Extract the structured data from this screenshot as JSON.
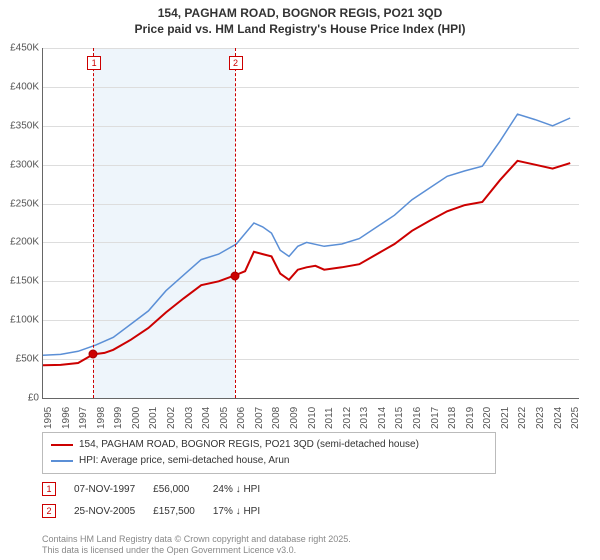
{
  "title_line1": "154, PAGHAM ROAD, BOGNOR REGIS, PO21 3QD",
  "title_line2": "Price paid vs. HM Land Registry's House Price Index (HPI)",
  "chart": {
    "type": "line",
    "background_color": "#ffffff",
    "grid_color": "#dddddd",
    "axis_color": "#666666",
    "highlight_band_color": "#eef5fb",
    "highlight_x_range": [
      1997.85,
      2005.9
    ],
    "xlim": [
      1995,
      2025.5
    ],
    "ylim": [
      0,
      450000
    ],
    "ytick_step": 50000,
    "yticks": [
      "£0",
      "£50K",
      "£100K",
      "£150K",
      "£200K",
      "£250K",
      "£300K",
      "£350K",
      "£400K",
      "£450K"
    ],
    "xticks": [
      1995,
      1996,
      1997,
      1998,
      1999,
      2000,
      2001,
      2002,
      2003,
      2004,
      2005,
      2006,
      2007,
      2008,
      2009,
      2010,
      2011,
      2012,
      2013,
      2014,
      2015,
      2016,
      2017,
      2018,
      2019,
      2020,
      2021,
      2022,
      2023,
      2024,
      2025
    ],
    "series": [
      {
        "name": "154, PAGHAM ROAD, BOGNOR REGIS, PO21 3QD (semi-detached house)",
        "color": "#cc0000",
        "line_width": 2,
        "data": [
          [
            1995,
            42000
          ],
          [
            1996,
            42500
          ],
          [
            1997,
            45000
          ],
          [
            1997.85,
            56000
          ],
          [
            1998.5,
            58000
          ],
          [
            1999,
            62000
          ],
          [
            2000,
            75000
          ],
          [
            2001,
            90000
          ],
          [
            2002,
            110000
          ],
          [
            2003,
            128000
          ],
          [
            2004,
            145000
          ],
          [
            2005,
            150000
          ],
          [
            2005.9,
            157500
          ],
          [
            2006.5,
            163000
          ],
          [
            2007,
            188000
          ],
          [
            2007.5,
            185000
          ],
          [
            2008,
            182000
          ],
          [
            2008.5,
            160000
          ],
          [
            2009,
            152000
          ],
          [
            2009.5,
            165000
          ],
          [
            2010,
            168000
          ],
          [
            2010.5,
            170000
          ],
          [
            2011,
            165000
          ],
          [
            2012,
            168000
          ],
          [
            2013,
            172000
          ],
          [
            2014,
            185000
          ],
          [
            2015,
            198000
          ],
          [
            2016,
            215000
          ],
          [
            2017,
            228000
          ],
          [
            2018,
            240000
          ],
          [
            2019,
            248000
          ],
          [
            2020,
            252000
          ],
          [
            2021,
            280000
          ],
          [
            2022,
            305000
          ],
          [
            2023,
            300000
          ],
          [
            2024,
            295000
          ],
          [
            2025,
            302000
          ]
        ]
      },
      {
        "name": "HPI: Average price, semi-detached house, Arun",
        "color": "#5b8fd6",
        "line_width": 1.5,
        "data": [
          [
            1995,
            55000
          ],
          [
            1996,
            56000
          ],
          [
            1997,
            60000
          ],
          [
            1998,
            68000
          ],
          [
            1999,
            78000
          ],
          [
            2000,
            95000
          ],
          [
            2001,
            112000
          ],
          [
            2002,
            138000
          ],
          [
            2003,
            158000
          ],
          [
            2004,
            178000
          ],
          [
            2005,
            185000
          ],
          [
            2006,
            198000
          ],
          [
            2007,
            225000
          ],
          [
            2007.5,
            220000
          ],
          [
            2008,
            212000
          ],
          [
            2008.5,
            190000
          ],
          [
            2009,
            182000
          ],
          [
            2009.5,
            195000
          ],
          [
            2010,
            200000
          ],
          [
            2011,
            195000
          ],
          [
            2012,
            198000
          ],
          [
            2013,
            205000
          ],
          [
            2014,
            220000
          ],
          [
            2015,
            235000
          ],
          [
            2016,
            255000
          ],
          [
            2017,
            270000
          ],
          [
            2018,
            285000
          ],
          [
            2019,
            292000
          ],
          [
            2020,
            298000
          ],
          [
            2021,
            330000
          ],
          [
            2022,
            365000
          ],
          [
            2023,
            358000
          ],
          [
            2024,
            350000
          ],
          [
            2025,
            360000
          ]
        ]
      }
    ],
    "sale_markers": [
      {
        "id": "1",
        "x": 1997.85,
        "y": 56000
      },
      {
        "id": "2",
        "x": 2005.9,
        "y": 157500
      }
    ]
  },
  "legend": {
    "line1": "154, PAGHAM ROAD, BOGNOR REGIS, PO21 3QD (semi-detached house)",
    "line2": "HPI: Average price, semi-detached house, Arun",
    "color1": "#cc0000",
    "color2": "#5b8fd6"
  },
  "info_rows": [
    {
      "id": "1",
      "date": "07-NOV-1997",
      "price": "£56,000",
      "delta": "24% ↓ HPI"
    },
    {
      "id": "2",
      "date": "25-NOV-2005",
      "price": "£157,500",
      "delta": "17% ↓ HPI"
    }
  ],
  "footer_line1": "Contains HM Land Registry data © Crown copyright and database right 2025.",
  "footer_line2": "This data is licensed under the Open Government Licence v3.0."
}
